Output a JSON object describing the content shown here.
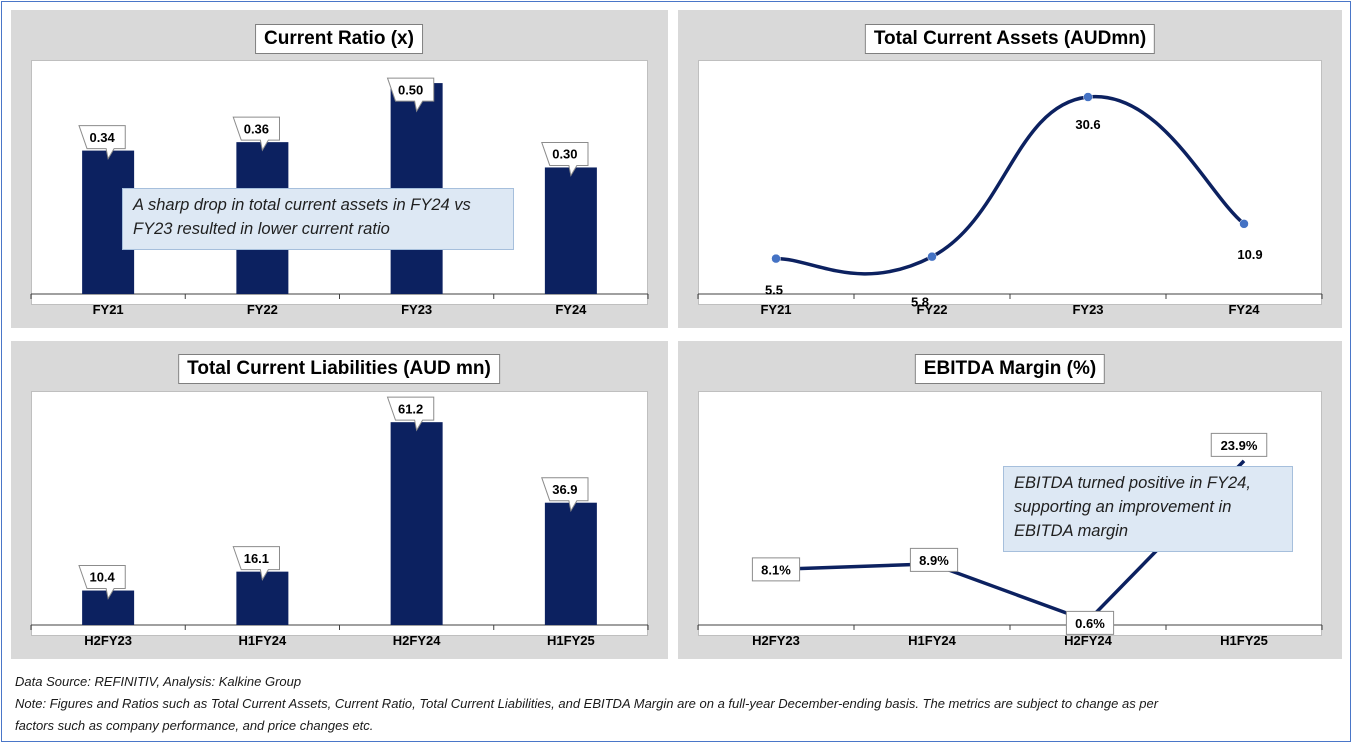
{
  "colors": {
    "bar": "#0c2160",
    "line": "#0c2160",
    "marker": "#4472c4",
    "panel_bg": "#d9d9d9"
  },
  "chart_data": [
    {
      "id": "cr",
      "type": "bar",
      "title": "Current Ratio (x)",
      "categories": [
        "FY21",
        "FY22",
        "FY23",
        "FY24"
      ],
      "values": [
        0.34,
        0.36,
        0.5,
        0.3
      ],
      "labels": [
        "0.34",
        "0.36",
        "0.50",
        "0.30"
      ],
      "ylim": [
        0,
        0.55
      ],
      "callout": "A sharp drop in total current assets in FY24 vs FY23 resulted in lower current ratio"
    },
    {
      "id": "tca",
      "type": "line",
      "title": "Total Current Assets (AUDmn)",
      "categories": [
        "FY21",
        "FY22",
        "FY23",
        "FY24"
      ],
      "values": [
        5.5,
        5.8,
        30.6,
        10.9
      ],
      "labels": [
        "5.5",
        "5.8",
        "30.6",
        "10.9"
      ],
      "ylim": [
        0,
        32
      ]
    },
    {
      "id": "tcl",
      "type": "bar",
      "title": "Total Current Liabilities (AUD mn)",
      "categories": [
        "H2FY23",
        "H1FY24",
        "H2FY24",
        "H1FY25"
      ],
      "values": [
        10.4,
        16.1,
        61.2,
        36.9
      ],
      "labels": [
        "10.4",
        "16.1",
        "61.2",
        "36.9"
      ],
      "ylim": [
        0,
        70
      ]
    },
    {
      "id": "em",
      "type": "line",
      "title": "EBITDA Margin (%)",
      "categories": [
        "H2FY23",
        "H1FY24",
        "H2FY24",
        "H1FY25"
      ],
      "values": [
        8.1,
        8.9,
        0.6,
        23.9
      ],
      "labels": [
        "8.1%",
        "8.9%",
        "0.6%",
        "23.9%"
      ],
      "ylim": [
        0,
        30
      ],
      "callout": "EBITDA turned positive in FY24, supporting an improvement in EBITDA margin"
    }
  ],
  "footer": {
    "source": "Data Source: REFINITIV, Analysis: Kalkine Group",
    "note_line1": "Note: Figures and Ratios such as Total Current Assets, Current Ratio, Total Current Liabilities, and EBITDA Margin  are on a full-year December-ending basis. The metrics are subject to change as per",
    "note_line2": "factors such as company performance, and price changes etc."
  }
}
